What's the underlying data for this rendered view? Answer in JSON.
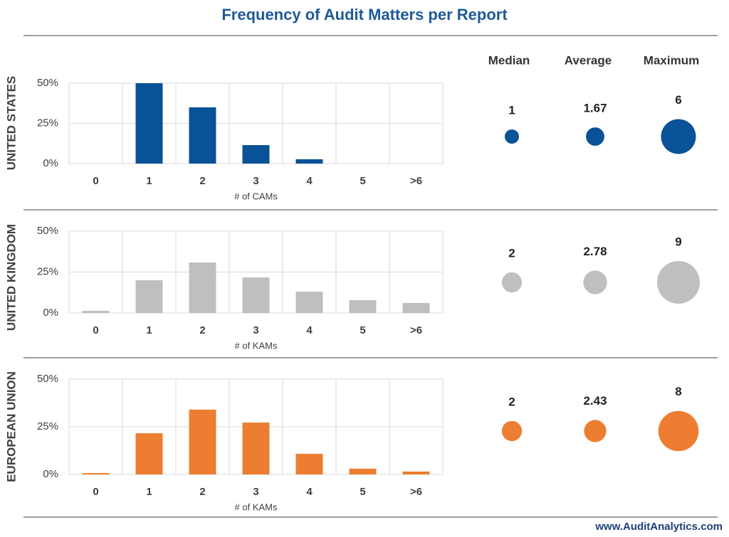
{
  "title": "Frequency of Audit Matters per Report",
  "stat_headers": [
    "Median",
    "Average",
    "Maximum"
  ],
  "footer": "www.AuditAnalytics.com",
  "chart_data": [
    {
      "type": "bar",
      "region": "UNITED STATES",
      "x_label": "# of CAMs",
      "categories": [
        "0",
        "1",
        "2",
        "3",
        "4",
        "5",
        ">6"
      ],
      "values": [
        0,
        50,
        35,
        11.5,
        2.7,
        0,
        0
      ],
      "color": "#0a5297",
      "ylim": [
        0,
        50
      ],
      "yticks": [
        {
          "value": 0,
          "label": "0%"
        },
        {
          "value": 25,
          "label": "25%"
        },
        {
          "value": 50,
          "label": "50%"
        }
      ],
      "grid": true,
      "stats": [
        1,
        1.67,
        6
      ]
    },
    {
      "type": "bar",
      "region": "UNITED KINGDOM",
      "x_label": "# of KAMs",
      "categories": [
        "0",
        "1",
        "2",
        "3",
        "4",
        "5",
        ">6"
      ],
      "values": [
        1.3,
        20,
        30.9,
        21.7,
        13,
        7.8,
        6.1
      ],
      "color": "#bfbfbf",
      "ylim": [
        0,
        50
      ],
      "yticks": [
        {
          "value": 0,
          "label": "0%"
        },
        {
          "value": 25,
          "label": "25%"
        },
        {
          "value": 50,
          "label": "50%"
        }
      ],
      "grid": true,
      "stats": [
        2,
        2.78,
        9
      ]
    },
    {
      "type": "bar",
      "region": "EUROPEAN UNION",
      "x_label": "# of KAMs",
      "categories": [
        "0",
        "1",
        "2",
        "3",
        "4",
        "5",
        ">6"
      ],
      "values": [
        0.7,
        21.6,
        34,
        27.2,
        10.8,
        3,
        1.5
      ],
      "color": "#ed7d31",
      "ylim": [
        0,
        50
      ],
      "yticks": [
        {
          "value": 0,
          "label": "0%"
        },
        {
          "value": 25,
          "label": "25%"
        },
        {
          "value": 50,
          "label": "50%"
        }
      ],
      "grid": true,
      "stats": [
        2,
        2.43,
        8
      ]
    }
  ]
}
